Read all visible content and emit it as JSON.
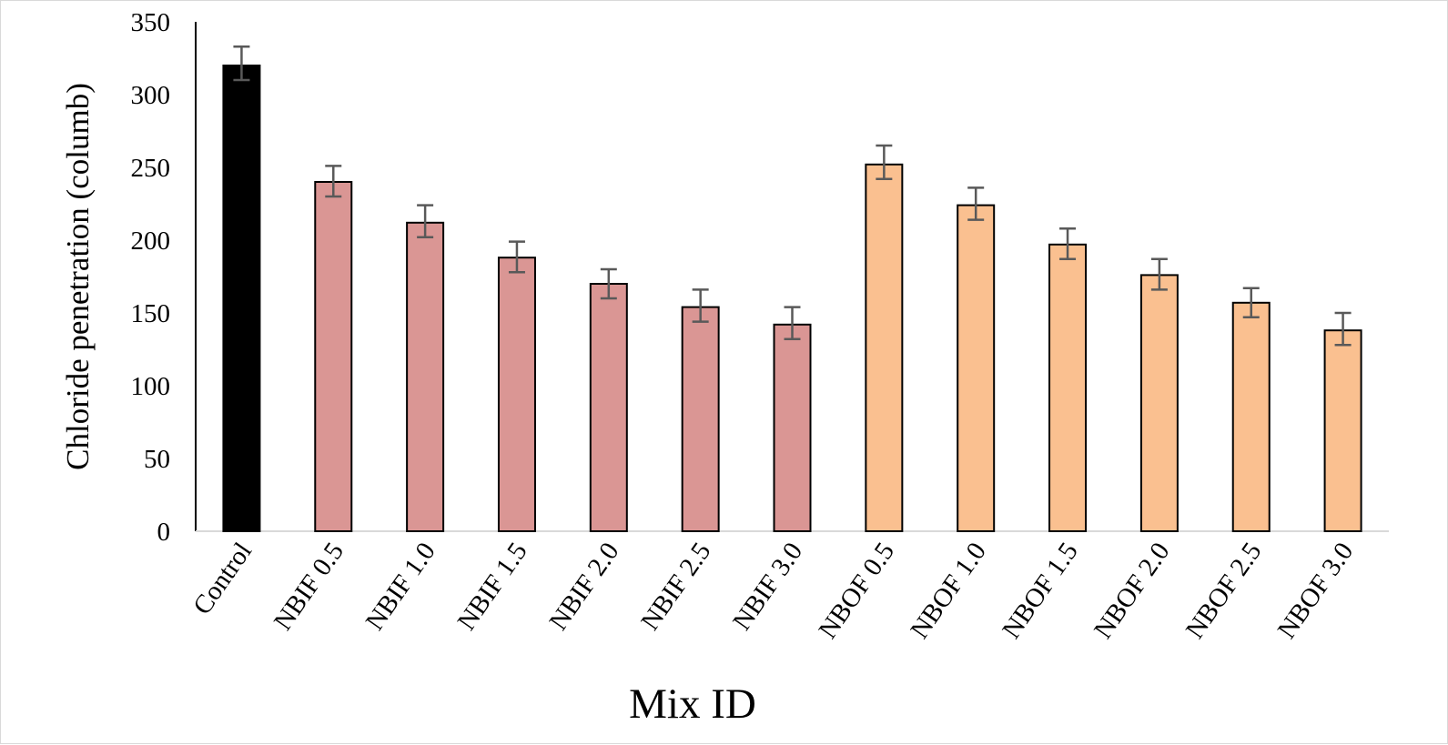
{
  "chart_data": {
    "type": "bar",
    "title": "",
    "xlabel": "Mix ID",
    "ylabel": "Chloride penetration (columb)",
    "ylim": [
      0,
      350
    ],
    "yticks": [
      0,
      50,
      100,
      150,
      200,
      250,
      300,
      350
    ],
    "grid": false,
    "legend": "none",
    "categories": [
      "Control",
      "NBIF 0.5",
      "NBIF 1.0",
      "NBIF 1.5",
      "NBIF 2.0",
      "NBIF 2.5",
      "NBIF 3.0",
      "NBOF 0.5",
      "NBOF 1.0",
      "NBOF 1.5",
      "NBOF 2.0",
      "NBOF 2.5",
      "NBOF 3.0"
    ],
    "values": [
      320,
      240,
      212,
      188,
      170,
      154,
      142,
      252,
      224,
      197,
      176,
      157,
      138
    ],
    "error_low": [
      10,
      10,
      10,
      10,
      10,
      10,
      10,
      10,
      10,
      10,
      10,
      10,
      10
    ],
    "error_high": [
      13,
      11,
      12,
      11,
      10,
      12,
      12,
      13,
      12,
      11,
      11,
      10,
      12
    ],
    "colors": [
      "#000000",
      "#da9694",
      "#da9694",
      "#da9694",
      "#da9694",
      "#da9694",
      "#da9694",
      "#fac090",
      "#fac090",
      "#fac090",
      "#fac090",
      "#fac090",
      "#fac090"
    ],
    "bar_edge_color": "#000000",
    "error_bar_color": "#595959",
    "axis_color": "#d9d9d9"
  }
}
